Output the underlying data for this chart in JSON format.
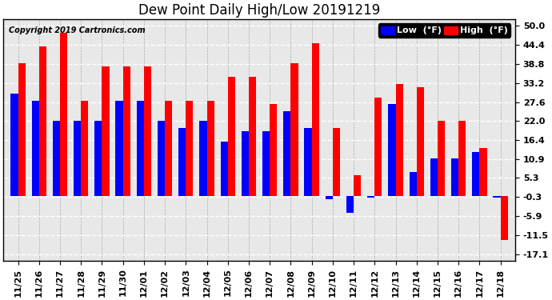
{
  "title": "Dew Point Daily High/Low 20191219",
  "copyright": "Copyright 2019 Cartronics.com",
  "dates": [
    "11/25",
    "11/26",
    "11/27",
    "11/28",
    "11/29",
    "11/30",
    "12/01",
    "12/02",
    "12/03",
    "12/04",
    "12/05",
    "12/06",
    "12/07",
    "12/08",
    "12/09",
    "12/10",
    "12/11",
    "12/12",
    "12/13",
    "12/14",
    "12/15",
    "12/16",
    "12/17",
    "12/18"
  ],
  "low_values": [
    30,
    28,
    22,
    22,
    22,
    28,
    28,
    22,
    20,
    22,
    16,
    19,
    19,
    25,
    20,
    -1,
    -5,
    -0.5,
    27,
    7,
    11,
    11,
    13,
    -0.5
  ],
  "high_values": [
    39,
    44,
    48,
    28,
    38,
    38,
    38,
    28,
    28,
    28,
    35,
    35,
    27,
    39,
    45,
    20,
    6,
    29,
    33,
    32,
    22,
    22,
    14,
    -13
  ],
  "low_color": "#0000FF",
  "high_color": "#FF0000",
  "bg_color": "#FFFFFF",
  "plot_bg_color": "#E8E8E8",
  "yticks": [
    -17.1,
    -11.5,
    -5.9,
    -0.3,
    5.3,
    10.9,
    16.4,
    22.0,
    27.6,
    33.2,
    38.8,
    44.4,
    50.0
  ],
  "ylim": [
    -19.0,
    52.0
  ],
  "title_fontsize": 12,
  "tick_fontsize": 8,
  "bar_width": 0.35
}
